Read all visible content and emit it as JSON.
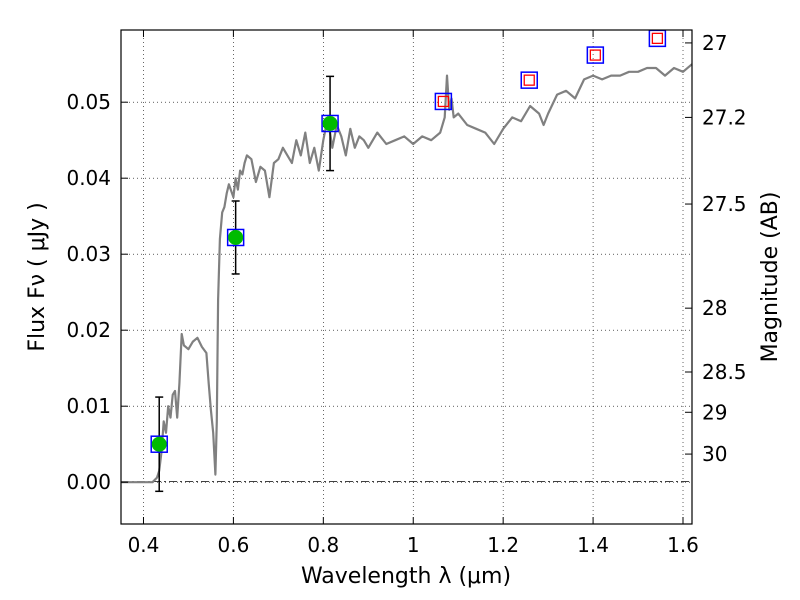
{
  "chart_data": {
    "type": "scatter",
    "title": "",
    "xlabel": "Wavelength  λ (μm)",
    "ylabel": "Flux  Fν  ( μJy )",
    "y2label": "Magnitude (AB)",
    "xlim": [
      0.35,
      1.62
    ],
    "ylim": [
      -0.0055,
      0.0595
    ],
    "grid": true,
    "x_ticks": [
      0.4,
      0.6,
      0.8,
      1.0,
      1.2,
      1.4,
      1.6
    ],
    "x_tick_labels": [
      "0.4",
      "0.6",
      "0.8",
      "1",
      "1.2",
      "1.4",
      "1.6"
    ],
    "y_ticks": [
      0.0,
      0.01,
      0.02,
      0.03,
      0.04,
      0.05
    ],
    "y_tick_labels": [
      "0.00",
      "0.01",
      "0.02",
      "0.03",
      "0.04",
      "0.05"
    ],
    "y2_ticks": [
      {
        "flux": 0.0578,
        "label": "27"
      },
      {
        "flux": 0.048,
        "label": "27.2"
      },
      {
        "flux": 0.0366,
        "label": "27.5"
      },
      {
        "flux": 0.0229,
        "label": "28"
      },
      {
        "flux": 0.0145,
        "label": "28.5"
      },
      {
        "flux": 0.0092,
        "label": "29"
      },
      {
        "flux": 0.0037,
        "label": "30"
      }
    ],
    "series": [
      {
        "kind": "spectrum",
        "color": "#808080",
        "x": [
          0.35,
          0.42,
          0.43,
          0.435,
          0.44,
          0.445,
          0.45,
          0.455,
          0.46,
          0.465,
          0.47,
          0.475,
          0.48,
          0.485,
          0.49,
          0.5,
          0.51,
          0.52,
          0.53,
          0.54,
          0.545,
          0.55,
          0.555,
          0.56,
          0.563,
          0.566,
          0.57,
          0.575,
          0.58,
          0.585,
          0.59,
          0.6,
          0.605,
          0.61,
          0.615,
          0.62,
          0.625,
          0.63,
          0.64,
          0.65,
          0.66,
          0.67,
          0.68,
          0.69,
          0.7,
          0.71,
          0.72,
          0.73,
          0.74,
          0.75,
          0.76,
          0.77,
          0.78,
          0.79,
          0.8,
          0.81,
          0.82,
          0.83,
          0.84,
          0.85,
          0.86,
          0.87,
          0.88,
          0.89,
          0.9,
          0.92,
          0.94,
          0.96,
          0.98,
          1.0,
          1.02,
          1.04,
          1.06,
          1.07,
          1.075,
          1.08,
          1.085,
          1.09,
          1.1,
          1.12,
          1.14,
          1.16,
          1.18,
          1.2,
          1.22,
          1.24,
          1.26,
          1.28,
          1.29,
          1.3,
          1.32,
          1.34,
          1.36,
          1.38,
          1.4,
          1.42,
          1.44,
          1.46,
          1.48,
          1.5,
          1.52,
          1.54,
          1.56,
          1.58,
          1.6,
          1.62
        ],
        "y": [
          0.0,
          0.0,
          0.0006,
          0.0015,
          0.004,
          0.008,
          0.0065,
          0.01,
          0.0085,
          0.0115,
          0.012,
          0.0085,
          0.013,
          0.0195,
          0.018,
          0.0175,
          0.0185,
          0.019,
          0.0178,
          0.017,
          0.013,
          0.0095,
          0.0065,
          0.001,
          0.008,
          0.024,
          0.032,
          0.0355,
          0.0362,
          0.038,
          0.0392,
          0.0375,
          0.04,
          0.0385,
          0.041,
          0.0405,
          0.042,
          0.043,
          0.0425,
          0.0395,
          0.0415,
          0.041,
          0.0375,
          0.042,
          0.0425,
          0.044,
          0.043,
          0.042,
          0.045,
          0.043,
          0.046,
          0.042,
          0.044,
          0.041,
          0.045,
          0.048,
          0.044,
          0.047,
          0.0455,
          0.043,
          0.0465,
          0.044,
          0.0455,
          0.045,
          0.044,
          0.046,
          0.0445,
          0.045,
          0.0455,
          0.0445,
          0.0455,
          0.045,
          0.046,
          0.048,
          0.0535,
          0.049,
          0.0505,
          0.048,
          0.0485,
          0.047,
          0.0465,
          0.046,
          0.0445,
          0.0465,
          0.048,
          0.0475,
          0.0495,
          0.0485,
          0.047,
          0.0485,
          0.051,
          0.0515,
          0.0505,
          0.053,
          0.0535,
          0.053,
          0.0535,
          0.0535,
          0.054,
          0.054,
          0.0545,
          0.0545,
          0.0535,
          0.0545,
          0.054,
          0.055
        ]
      },
      {
        "kind": "photometry-detected",
        "marker": "green-circle-blue-square",
        "x": [
          0.435,
          0.605,
          0.815
        ],
        "y": [
          0.005,
          0.0322,
          0.0472
        ],
        "yerr": [
          0.0062,
          0.0048,
          0.0062
        ]
      },
      {
        "kind": "photometry-predicted",
        "marker": "red-square-in-blue-square",
        "x": [
          1.067,
          1.258,
          1.405,
          1.543
        ],
        "y": [
          0.0501,
          0.0529,
          0.0562,
          0.0584
        ]
      }
    ],
    "colors": {
      "spectrum": "#808080",
      "detected_fill": "#00bb00",
      "square_outline": "#0000ff",
      "predicted_inner": "#ff0000",
      "errorbar": "#000000"
    }
  }
}
